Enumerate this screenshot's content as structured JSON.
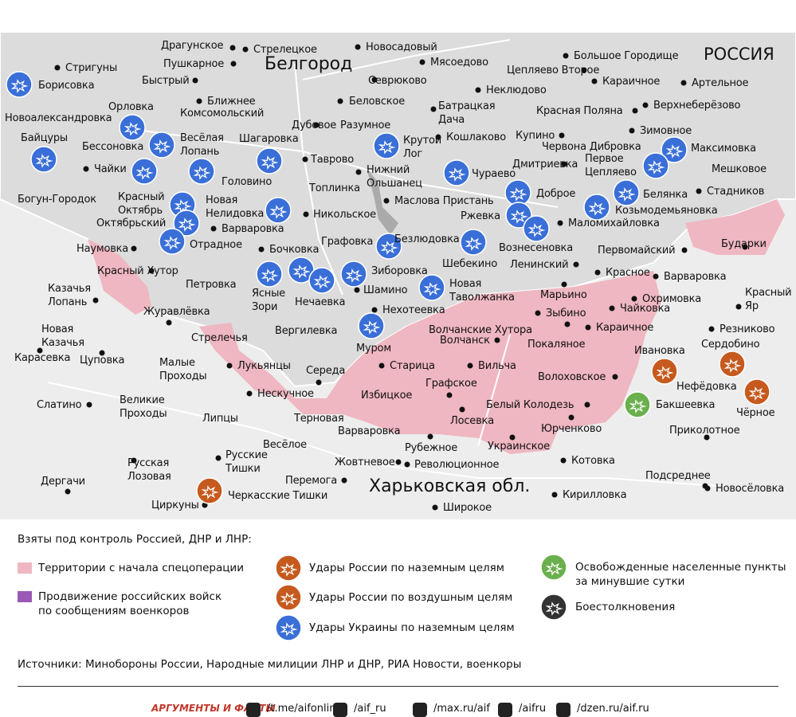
{
  "map": {
    "country_label": "РОССИЯ",
    "city_label": "Белгород",
    "region_label": "Харьковская обл.",
    "places": [
      "Драгунское",
      "Стрелецкое",
      "Новосадовый",
      "Большое Городище",
      "Стригуны",
      "Пушкарное",
      "Мясоедово",
      "Цепляево Второе",
      "Караичное",
      "Артельное",
      "Борисовка",
      "Быстрый",
      "Севрюково",
      "Неклюдово",
      "Ближнее",
      "Беловское",
      "Батрацкая\nДача",
      "Красная Поляна",
      "Верхнеберёзово",
      "Орловка",
      "Новоалександровка",
      "Комсомольский",
      "Дубовое",
      "Разумное",
      "Крутой\nЛог",
      "Кошлаково",
      "Купино",
      "Зимовное",
      "Байцуры",
      "Весёлая\nЛопань",
      "Шагаровка",
      "Бессоновка",
      "Червона Дибровка",
      "Максимовка",
      "Таврово",
      "Дмитриевка",
      "Первое\nЦепляево",
      "Чайки",
      "Нижний\nОльшанец",
      "Чураево",
      "Мешковое",
      "Головино",
      "Топлинка",
      "Доброе",
      "Белянка",
      "Стадников",
      "Богун-Городок",
      "Красный\nОктябрь",
      "Новая\nНелидовка",
      "Маслова Пристань",
      "Никольское",
      "Ржевка",
      "Козьмодемьяновка",
      "Октябрьский",
      "Маломихайловка",
      "Варваровка",
      "Бударки",
      "Графовка",
      "Безлюдовка",
      "Наумовка",
      "Отрадное",
      "Бочковка",
      "Шебекино",
      "Вознесеновка",
      "Первомайский",
      "Ленинский",
      "Красный Хутор",
      "Зиборовка",
      "Красное",
      "Варваровка",
      "Петровка",
      "Новая\nТаволжанка",
      "Марьино",
      "Охримовка",
      "Красный\nЯр",
      "Казачья\nЛопань",
      "Ясные\nЗори",
      "Нечаевка",
      "Шамино",
      "Зыбино",
      "Чайковка",
      "Нехотеевка",
      "Журавлёвка",
      "Волчанские Хутора",
      "Караичное",
      "Резниково",
      "Вергилевка",
      "Покаляное",
      "Волчанск",
      "Муром",
      "Новая\nКазачья",
      "Стрелечья",
      "Ивановка",
      "Сердобино",
      "Карасевка",
      "Цуповка",
      "Малые\nПроходы",
      "Лукьянцы",
      "Середа",
      "Старица",
      "Вильча",
      "Волоховское",
      "Нефёдовка",
      "Нескучное",
      "Графское",
      "Избицкое",
      "Великие\nПроходы",
      "Слатино",
      "Белый Колодезь",
      "Бакшеевка",
      "Чёрное",
      "Терновая",
      "Липцы",
      "Лосевка",
      "Варваровка",
      "Юрченково",
      "Приколотное",
      "Рубежное",
      "Украинское",
      "Весёлое",
      "Русские\nТишки",
      "Русская\nЛозовая",
      "Жовтневое",
      "Революционное",
      "Котовка",
      "Подсреднее",
      "Дергачи",
      "Перемога",
      "Новосёловка",
      "Черкасские Тишки",
      "Кирилловка",
      "Циркуны",
      "Широкое"
    ]
  },
  "legend": {
    "title": "Взяты под контроль Россией, ДНР и ЛНР:",
    "items": [
      "Территории с начала спецоперации",
      "Продвижение российских войск\nпо сообщениям военкоров",
      "Удары России по наземным целям",
      "Удары России по воздушным целям",
      "Удары Украины по наземным целям",
      "Освобожденные населенные пункты\nза минувшие сутки",
      "Боестолкновения"
    ]
  },
  "sources": "Источники: Минобороны России, Народные милиции ЛНР и ДНР, РИА Новости, военкоры",
  "footer": {
    "logo": "АРГУМЕНТЫ И ФАКТЫ",
    "links": [
      "/t.me/aifonline",
      "/aif_ru",
      "/max.ru/aif",
      "/aifru",
      "/dzen.ru/aif.ru"
    ]
  }
}
